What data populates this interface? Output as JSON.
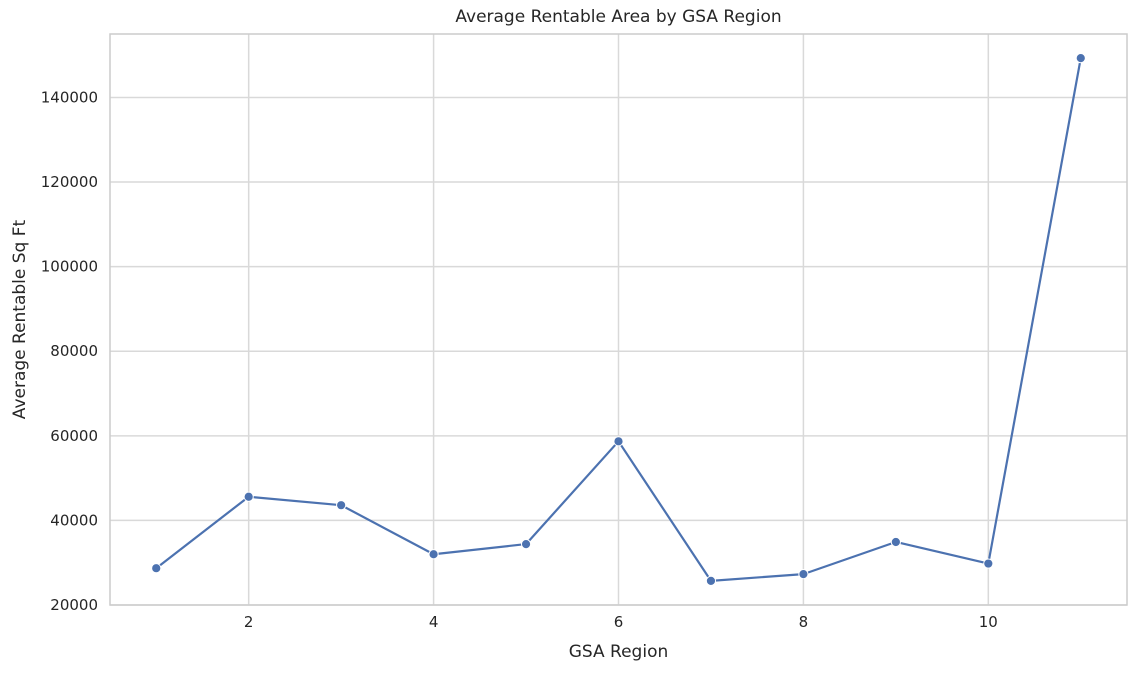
{
  "chart_data": {
    "type": "line",
    "title": "Average Rentable Area by GSA Region",
    "xlabel": "GSA Region",
    "ylabel": "Average Rentable Sq Ft",
    "x": [
      1,
      2,
      3,
      4,
      5,
      6,
      7,
      8,
      9,
      10,
      11
    ],
    "series": [
      {
        "values": [
          28700,
          45600,
          43600,
          32000,
          34400,
          58700,
          25700,
          27300,
          34900,
          29800,
          149300
        ]
      }
    ],
    "xlim": [
      0.5,
      11.5
    ],
    "ylim": [
      20000,
      155000
    ],
    "xticks": [
      2,
      4,
      6,
      8,
      10
    ],
    "yticks": [
      20000,
      40000,
      60000,
      80000,
      100000,
      120000,
      140000
    ],
    "grid": true,
    "markers": true,
    "colors": {
      "line": "#4c72b0",
      "grid": "#d9d9d9",
      "frame": "#cccccc",
      "text": "#262626"
    }
  }
}
